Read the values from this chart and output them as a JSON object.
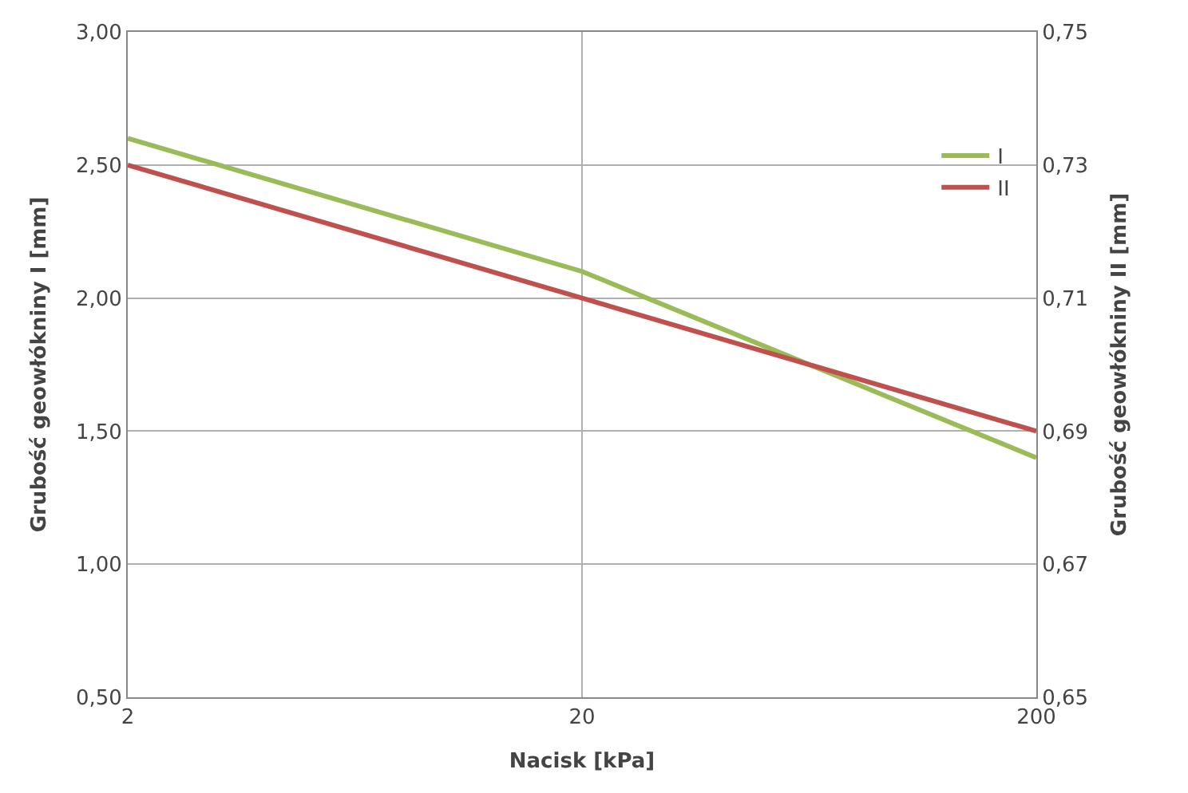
{
  "chart_data": {
    "type": "line",
    "xlabel": "Nacisk [kPa]",
    "ylabel": "Grubość geowłókniny I [mm]",
    "y2label": "Grubość geowłókniny II [mm]",
    "x": [
      2,
      20,
      200
    ],
    "log": "x",
    "xlim": [
      2,
      200
    ],
    "xticks": [
      2,
      20,
      200
    ],
    "ylim": [
      0.5,
      3.0
    ],
    "yticks": [
      {
        "value": 0.5,
        "label": "0,50"
      },
      {
        "value": 1.0,
        "label": "1,00"
      },
      {
        "value": 1.5,
        "label": "1,50"
      },
      {
        "value": 2.0,
        "label": "2,00"
      },
      {
        "value": 2.5,
        "label": "2,50"
      },
      {
        "value": 3.0,
        "label": "3,00"
      }
    ],
    "y2lim": [
      0.65,
      0.75
    ],
    "y2ticks": [
      {
        "value": 0.65,
        "label": "0,65"
      },
      {
        "value": 0.67,
        "label": "0,67"
      },
      {
        "value": 0.69,
        "label": "0,69"
      },
      {
        "value": 0.71,
        "label": "0,71"
      },
      {
        "value": 0.73,
        "label": "0,73"
      },
      {
        "value": 0.75,
        "label": "0,75"
      }
    ],
    "series": [
      {
        "name": "I",
        "color": "#9bbb59",
        "values": [
          2.6,
          2.1,
          1.4
        ]
      },
      {
        "name": "II",
        "color": "#c0504d",
        "values": [
          0.73,
          0.71,
          0.69
        ],
        "axis": "y2"
      }
    ],
    "grid": true,
    "legend": "top right",
    "line_style": "solid"
  }
}
